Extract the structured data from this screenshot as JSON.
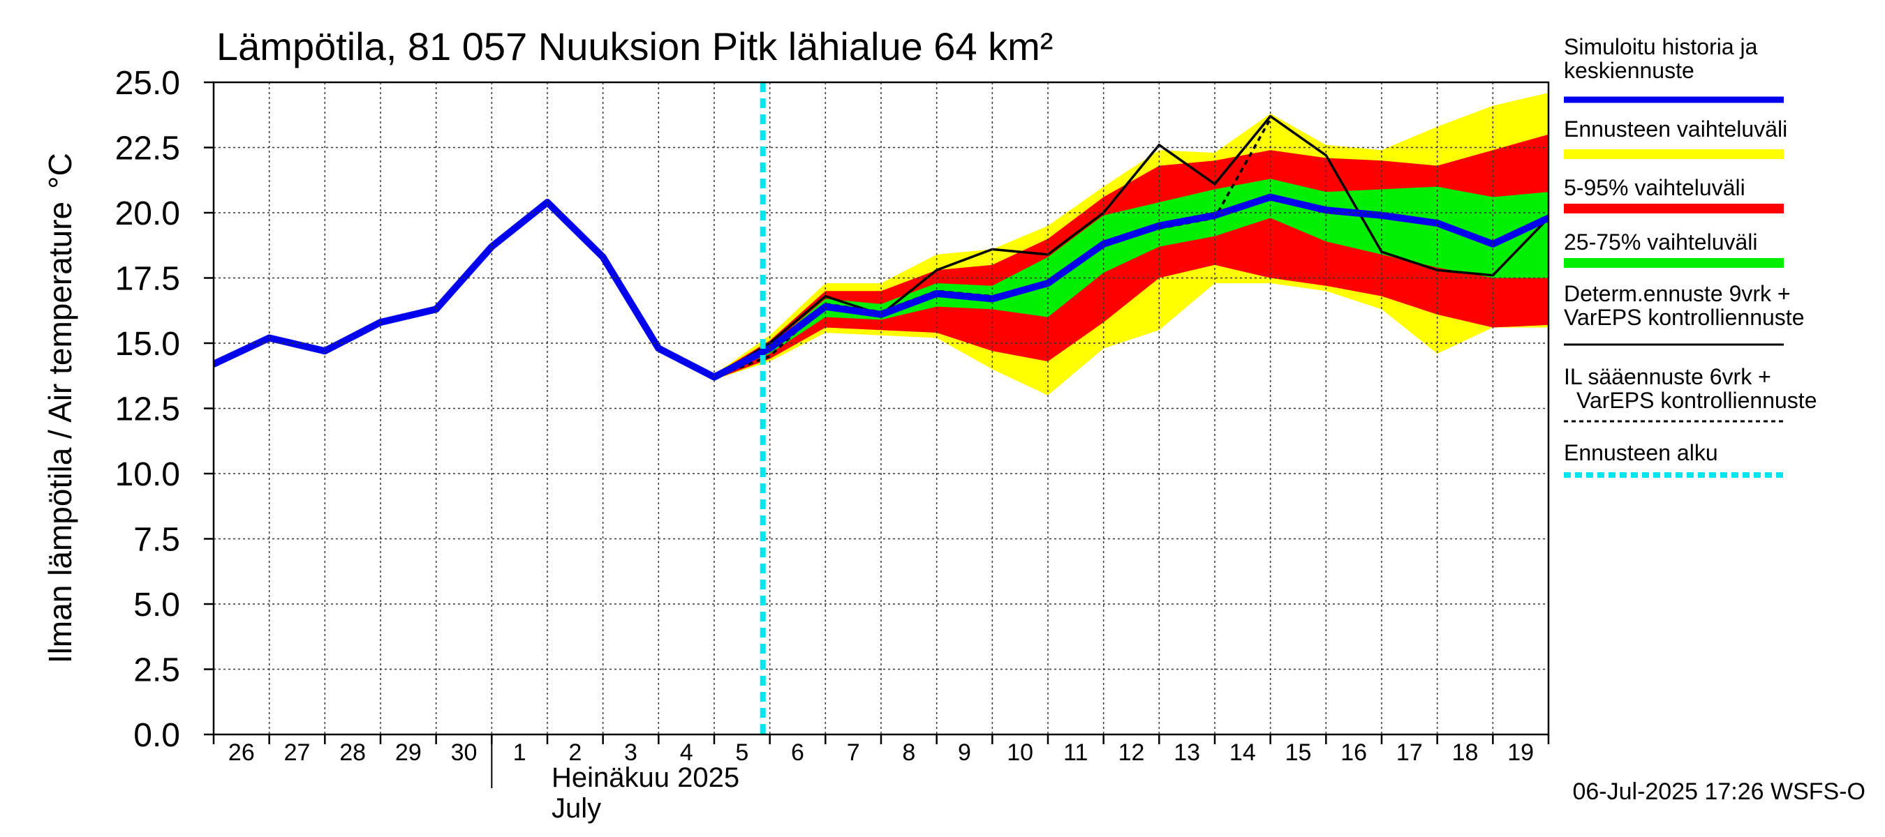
{
  "chart_data": {
    "type": "area",
    "title": "Lämpötila, 81 057 Nuuksion Pitk lähialue 64 km²",
    "ylabel": "Ilman lämpötila / Air temperature",
    "yunit": "°C",
    "ylim": [
      0,
      25
    ],
    "xlim": [
      "2025-06-26",
      "2025-07-20"
    ],
    "yticks": [
      "0.0",
      "2.5",
      "5.0",
      "7.5",
      "10.0",
      "12.5",
      "15.0",
      "17.5",
      "20.0",
      "22.5",
      "25.0"
    ],
    "xtick_labels": [
      "26",
      "27",
      "28",
      "29",
      "30",
      "1",
      "2",
      "3",
      "4",
      "5",
      "6",
      "7",
      "8",
      "9",
      "10",
      "11",
      "12",
      "13",
      "14",
      "15",
      "16",
      "17",
      "18",
      "19"
    ],
    "month_label_fi": "Heinäkuu  2025",
    "month_label_en": "July",
    "grid": true,
    "legend_position": "right",
    "forecast_start": "2025-07-05 21:00",
    "colors": {
      "history": "#0000ee",
      "range_full": "#ffff00",
      "range_5_95": "#ff0000",
      "range_25_75": "#00ee00",
      "determ": "#000000",
      "il": "#000000",
      "forecast_start": "#00e5ee"
    },
    "series": [
      {
        "name": "Simuloitu historia ja keskiennuste",
        "points": [
          [
            "2025-06-26 00:00",
            14.2
          ],
          [
            "2025-06-27 00:00",
            15.2
          ],
          [
            "2025-06-28 00:00",
            14.7
          ],
          [
            "2025-06-29 00:00",
            15.8
          ],
          [
            "2025-06-30 00:00",
            16.3
          ],
          [
            "2025-07-01 00:00",
            18.7
          ],
          [
            "2025-07-02 00:00",
            20.4
          ],
          [
            "2025-07-03 00:00",
            18.3
          ],
          [
            "2025-07-04 00:00",
            14.8
          ],
          [
            "2025-07-05 00:00",
            13.7
          ],
          [
            "2025-07-06 00:00",
            14.8
          ],
          [
            "2025-07-07 00:00",
            16.4
          ],
          [
            "2025-07-08 00:00",
            16.1
          ],
          [
            "2025-07-09 00:00",
            16.9
          ],
          [
            "2025-07-10 00:00",
            16.7
          ],
          [
            "2025-07-11 00:00",
            17.3
          ],
          [
            "2025-07-12 00:00",
            18.8
          ],
          [
            "2025-07-13 00:00",
            19.5
          ],
          [
            "2025-07-14 00:00",
            19.9
          ],
          [
            "2025-07-15 00:00",
            20.6
          ],
          [
            "2025-07-16 00:00",
            20.1
          ],
          [
            "2025-07-17 00:00",
            19.9
          ],
          [
            "2025-07-18 00:00",
            19.6
          ],
          [
            "2025-07-19 00:00",
            18.8
          ],
          [
            "2025-07-20 00:00",
            19.8
          ]
        ]
      },
      {
        "name": "Determ.ennuste 9vrk + VarEPS kontrolliennuste",
        "points": [
          [
            "2025-07-05 00:00",
            13.7
          ],
          [
            "2025-07-06 00:00",
            15.0
          ],
          [
            "2025-07-07 00:00",
            16.8
          ],
          [
            "2025-07-08 00:00",
            16.1
          ],
          [
            "2025-07-09 00:00",
            17.8
          ],
          [
            "2025-07-10 00:00",
            18.6
          ],
          [
            "2025-07-11 00:00",
            18.4
          ],
          [
            "2025-07-12 00:00",
            20.0
          ],
          [
            "2025-07-13 00:00",
            22.6
          ],
          [
            "2025-07-14 00:00",
            21.1
          ],
          [
            "2025-07-15 00:00",
            23.7
          ],
          [
            "2025-07-16 00:00",
            22.2
          ],
          [
            "2025-07-17 00:00",
            18.5
          ],
          [
            "2025-07-18 00:00",
            17.8
          ],
          [
            "2025-07-19 00:00",
            17.6
          ],
          [
            "2025-07-20 00:00",
            19.8
          ]
        ]
      },
      {
        "name": "IL sääennuste 6vrk + VarEPS kontrolliennuste",
        "points": [
          [
            "2025-07-05 00:00",
            13.7
          ],
          [
            "2025-07-06 00:00",
            14.5
          ],
          [
            "2025-07-07 00:00",
            16.5
          ],
          [
            "2025-07-08 00:00",
            16.2
          ],
          [
            "2025-07-09 00:00",
            17.0
          ],
          [
            "2025-07-10 00:00",
            16.8
          ],
          [
            "2025-07-11 00:00",
            17.3
          ],
          [
            "2025-07-12 00:00",
            18.8
          ],
          [
            "2025-07-13 00:00",
            19.4
          ],
          [
            "2025-07-14 00:00",
            19.8
          ],
          [
            "2025-07-15 00:00",
            23.6
          ]
        ]
      }
    ],
    "bands": [
      {
        "name": "Ennusteen vaihteluväli",
        "points": [
          [
            "2025-07-05 00:00",
            13.6,
            13.8
          ],
          [
            "2025-07-06 00:00",
            14.3,
            15.3
          ],
          [
            "2025-07-07 00:00",
            15.4,
            17.3
          ],
          [
            "2025-07-08 00:00",
            15.3,
            17.3
          ],
          [
            "2025-07-09 00:00",
            15.2,
            18.4
          ],
          [
            "2025-07-10 00:00",
            14.0,
            18.6
          ],
          [
            "2025-07-11 00:00",
            13.0,
            19.5
          ],
          [
            "2025-07-12 00:00",
            14.8,
            21.0
          ],
          [
            "2025-07-13 00:00",
            15.5,
            22.4
          ],
          [
            "2025-07-14 00:00",
            17.3,
            22.3
          ],
          [
            "2025-07-15 00:00",
            17.3,
            23.8
          ],
          [
            "2025-07-16 00:00",
            17.0,
            22.6
          ],
          [
            "2025-07-17 00:00",
            16.3,
            22.4
          ],
          [
            "2025-07-18 00:00",
            14.6,
            23.3
          ],
          [
            "2025-07-19 00:00",
            15.6,
            24.1
          ],
          [
            "2025-07-20 00:00",
            15.6,
            24.6
          ]
        ]
      },
      {
        "name": "5-95% vaihteluväli",
        "points": [
          [
            "2025-07-05 00:00",
            13.6,
            13.8
          ],
          [
            "2025-07-06 00:00",
            14.4,
            15.1
          ],
          [
            "2025-07-07 00:00",
            15.6,
            17.0
          ],
          [
            "2025-07-08 00:00",
            15.5,
            17.0
          ],
          [
            "2025-07-09 00:00",
            15.4,
            17.8
          ],
          [
            "2025-07-10 00:00",
            14.7,
            18.0
          ],
          [
            "2025-07-11 00:00",
            14.3,
            19.0
          ],
          [
            "2025-07-12 00:00",
            15.8,
            20.6
          ],
          [
            "2025-07-13 00:00",
            17.5,
            21.8
          ],
          [
            "2025-07-14 00:00",
            18.0,
            22.0
          ],
          [
            "2025-07-15 00:00",
            17.5,
            22.4
          ],
          [
            "2025-07-16 00:00",
            17.2,
            22.1
          ],
          [
            "2025-07-17 00:00",
            16.8,
            22.0
          ],
          [
            "2025-07-18 00:00",
            16.1,
            21.8
          ],
          [
            "2025-07-19 00:00",
            15.6,
            22.4
          ],
          [
            "2025-07-20 00:00",
            15.7,
            23.0
          ]
        ]
      },
      {
        "name": "25-75% vaihteluväli",
        "points": [
          [
            "2025-07-05 00:00",
            13.7,
            13.7
          ],
          [
            "2025-07-06 00:00",
            14.6,
            14.9
          ],
          [
            "2025-07-07 00:00",
            16.0,
            16.7
          ],
          [
            "2025-07-08 00:00",
            15.9,
            16.5
          ],
          [
            "2025-07-09 00:00",
            16.4,
            17.3
          ],
          [
            "2025-07-10 00:00",
            16.3,
            17.2
          ],
          [
            "2025-07-11 00:00",
            16.0,
            18.3
          ],
          [
            "2025-07-12 00:00",
            17.7,
            19.9
          ],
          [
            "2025-07-13 00:00",
            18.7,
            20.4
          ],
          [
            "2025-07-14 00:00",
            19.1,
            20.9
          ],
          [
            "2025-07-15 00:00",
            19.8,
            21.3
          ],
          [
            "2025-07-16 00:00",
            18.9,
            20.8
          ],
          [
            "2025-07-17 00:00",
            18.4,
            20.9
          ],
          [
            "2025-07-18 00:00",
            17.9,
            21.0
          ],
          [
            "2025-07-19 00:00",
            17.5,
            20.6
          ],
          [
            "2025-07-20 00:00",
            17.5,
            20.8
          ]
        ]
      }
    ],
    "legend": [
      {
        "label": "Simuloitu historia ja keskiennuste",
        "style": "history"
      },
      {
        "label": "Ennusteen vaihteluväli",
        "style": "range_full"
      },
      {
        "label": "5-95% vaihteluväli",
        "style": "range_5_95"
      },
      {
        "label": "25-75% vaihteluväli",
        "style": "range_25_75"
      },
      {
        "label": "Determ.ennuste 9vrk + VarEPS kontrolliennuste",
        "style": "determ"
      },
      {
        "label": "IL sääennuste 6vrk  +   VarEPS kontrolliennuste",
        "style": "il"
      },
      {
        "label": "Ennusteen alku",
        "style": "forecast_start"
      }
    ],
    "footer": "06-Jul-2025 17:26 WSFS-O"
  }
}
